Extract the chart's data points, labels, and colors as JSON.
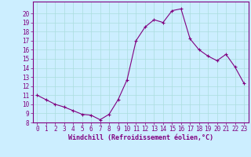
{
  "x": [
    0,
    1,
    2,
    3,
    4,
    5,
    6,
    7,
    8,
    9,
    10,
    11,
    12,
    13,
    14,
    15,
    16,
    17,
    18,
    19,
    20,
    21,
    22,
    23
  ],
  "y": [
    11.0,
    10.5,
    10.0,
    9.7,
    9.3,
    8.9,
    8.8,
    8.3,
    8.9,
    10.5,
    12.7,
    17.0,
    18.5,
    19.3,
    19.0,
    20.3,
    20.5,
    17.2,
    16.0,
    15.3,
    14.8,
    15.5,
    14.1,
    12.3
  ],
  "line_color": "#800080",
  "marker": "+",
  "marker_size": 3,
  "bg_color": "#cceeff",
  "grid_color": "#aadddd",
  "xlabel": "Windchill (Refroidissement éolien,°C)",
  "xlim": [
    -0.5,
    23.5
  ],
  "ylim": [
    8,
    21
  ],
  "yticks": [
    8,
    9,
    10,
    11,
    12,
    13,
    14,
    15,
    16,
    17,
    18,
    19,
    20
  ],
  "xticks": [
    0,
    1,
    2,
    3,
    4,
    5,
    6,
    7,
    8,
    9,
    10,
    11,
    12,
    13,
    14,
    15,
    16,
    17,
    18,
    19,
    20,
    21,
    22,
    23
  ],
  "tick_color": "#800080",
  "label_color": "#800080",
  "axis_color": "#800080",
  "font_size": 5.5,
  "xlabel_fontsize": 6.0
}
